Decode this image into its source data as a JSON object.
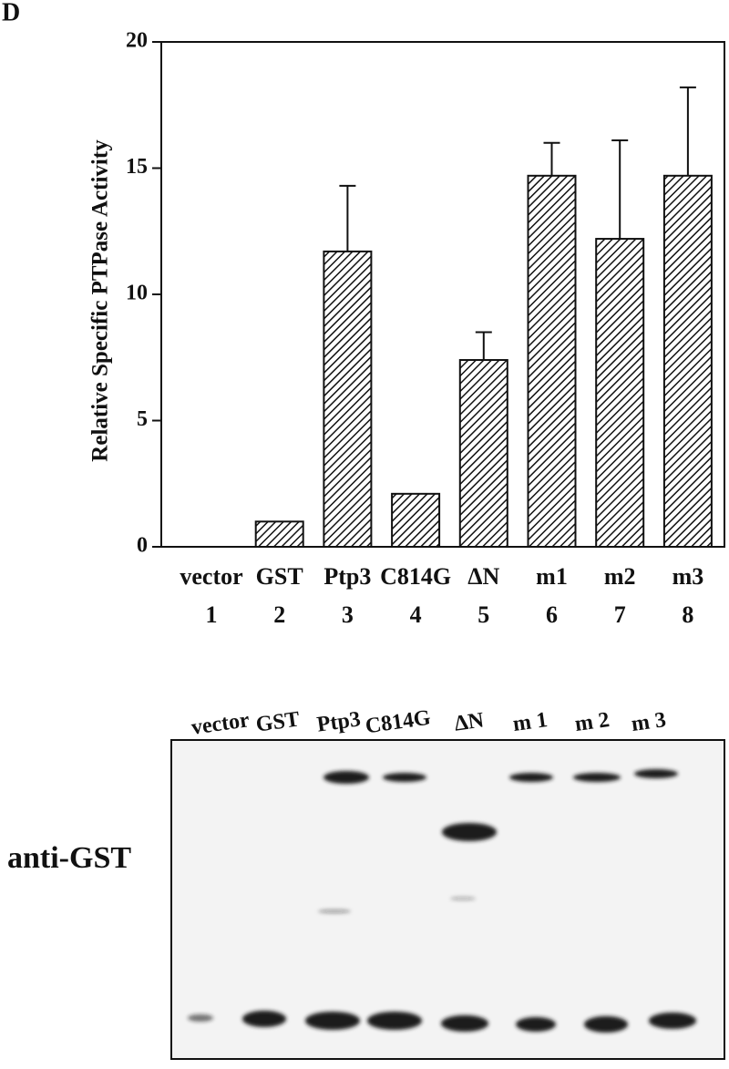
{
  "chart_data": {
    "type": "bar",
    "panel_label": "D",
    "y_label": "Relative Specific PTPase Activity",
    "categories": [
      "vector",
      "GST",
      "Ptp3",
      "C814G",
      "ΔN",
      "m1",
      "m2",
      "m3"
    ],
    "category_numbers": [
      1,
      2,
      3,
      4,
      5,
      6,
      7,
      8
    ],
    "values": [
      0,
      1,
      11.7,
      2.1,
      7.4,
      14.7,
      12.2,
      14.7
    ],
    "errors": [
      null,
      null,
      2.6,
      null,
      1.1,
      1.3,
      3.9,
      3.5
    ],
    "ylim": [
      0,
      20
    ],
    "yticks": [
      0,
      5,
      10,
      15,
      20
    ],
    "color": "#111111"
  },
  "blot": {
    "lanes": [
      "vector",
      "GST",
      "Ptp3",
      "C814G",
      "ΔN",
      "m 1",
      "m 2",
      "m 3"
    ],
    "antibody": "anti-GST"
  }
}
